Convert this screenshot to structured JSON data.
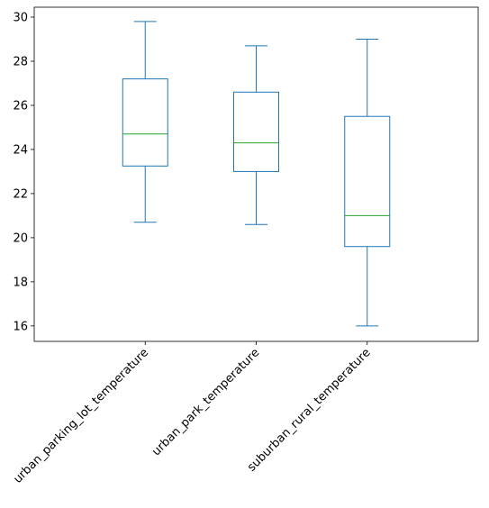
{
  "chart_data": {
    "type": "box",
    "title": "",
    "xlabel": "",
    "ylabel": "",
    "ylim": [
      15.3,
      30.45
    ],
    "yticks": [
      16,
      18,
      20,
      22,
      24,
      26,
      28,
      30
    ],
    "grid": false,
    "categories": [
      "urban_parking_lot_temperature",
      "urban_park_temperature",
      "suburban_rural_temperature"
    ],
    "boxes": [
      {
        "whisker_low": 20.7,
        "q1": 23.25,
        "median": 24.7,
        "q3": 27.2,
        "whisker_high": 29.8
      },
      {
        "whisker_low": 20.6,
        "q1": 23.0,
        "median": 24.3,
        "q3": 26.6,
        "whisker_high": 28.7
      },
      {
        "whisker_low": 16.0,
        "q1": 19.6,
        "median": 21.0,
        "q3": 25.5,
        "whisker_high": 29.0
      }
    ],
    "colors": {
      "box": "#1f77b4",
      "median": "#2ca02c",
      "axes": "#000000"
    }
  }
}
